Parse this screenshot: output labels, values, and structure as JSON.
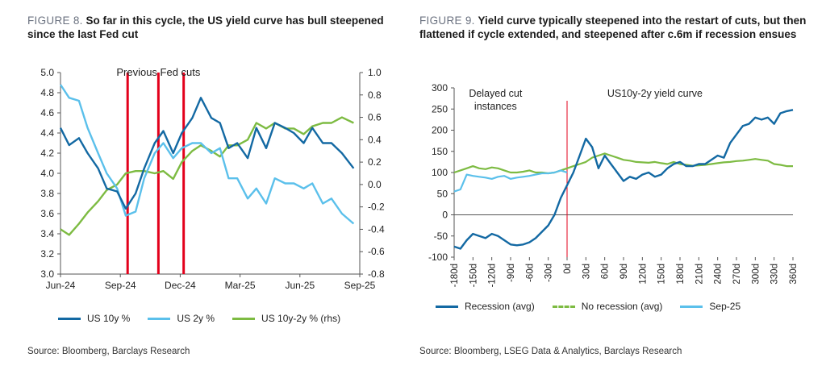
{
  "figure8": {
    "number": "FIGURE 8.",
    "title": "So far in this cycle, the US yield curve has bull steepened since the last Fed cut",
    "source": "Source: Bloomberg, Barclays Research",
    "annotation": "Previous Fed cuts",
    "legend": [
      "US 10y %",
      "US 2y %",
      "US 10y-2y % (rhs)"
    ]
  },
  "figure9": {
    "number": "FIGURE 9.",
    "title": "Yield curve typically steepened into the restart of cuts, but then flattened if cycle extended, and steepened after c.6m if recession ensues",
    "source": "Source: Bloomberg, LSEG Data & Analytics, Barclays Research",
    "annotation_left": "Delayed cut\ninstances",
    "annotation_right": "US10y-2y yield curve",
    "legend": [
      "Recession (avg)",
      "No recession (avg)",
      "Sep-25"
    ]
  },
  "colors": {
    "dark_blue": "#1369a3",
    "light_blue": "#5bc0eb",
    "green": "#7dbb42",
    "red": "#e3001b",
    "axis": "#555555"
  },
  "chart_data": [
    {
      "type": "line",
      "title": "FIGURE 8. So far in this cycle, the US yield curve has bull steepened since the last Fed cut",
      "x_tick_labels": [
        "Jun-24",
        "Sep-24",
        "Dec-24",
        "Mar-25",
        "Jun-25",
        "Sep-25"
      ],
      "x_range": [
        "2024-06-01",
        "2025-09-30"
      ],
      "y_left": {
        "ticks": [
          "3.0",
          "3.2",
          "3.4",
          "3.6",
          "3.8",
          "4.0",
          "4.2",
          "4.4",
          "4.6",
          "4.8",
          "5.0"
        ],
        "lim": [
          3.0,
          5.0
        ]
      },
      "y_right": {
        "ticks": [
          "-0.8",
          "-0.6",
          "-0.4",
          "-0.2",
          "0.0",
          "0.2",
          "0.4",
          "0.6",
          "0.8",
          "1.0"
        ],
        "lim": [
          -0.8,
          1.0
        ]
      },
      "vertical_lines": [
        "2024-09-18",
        "2024-11-07",
        "2024-12-18"
      ],
      "series": [
        {
          "name": "US 10y %",
          "axis": "left",
          "x": [
            "2024-06-01",
            "2024-06-15",
            "2024-07-01",
            "2024-07-15",
            "2024-08-01",
            "2024-08-15",
            "2024-09-01",
            "2024-09-15",
            "2024-10-01",
            "2024-10-15",
            "2024-11-01",
            "2024-11-15",
            "2024-12-01",
            "2024-12-15",
            "2025-01-01",
            "2025-01-15",
            "2025-02-01",
            "2025-02-15",
            "2025-03-01",
            "2025-03-15",
            "2025-04-01",
            "2025-04-15",
            "2025-05-01",
            "2025-05-15",
            "2025-06-01",
            "2025-06-15",
            "2025-07-01",
            "2025-07-15",
            "2025-08-01",
            "2025-08-15",
            "2025-09-01",
            "2025-09-20"
          ],
          "y": [
            4.45,
            4.28,
            4.35,
            4.2,
            4.05,
            3.85,
            3.82,
            3.65,
            3.8,
            4.05,
            4.3,
            4.42,
            4.2,
            4.4,
            4.55,
            4.75,
            4.55,
            4.5,
            4.25,
            4.3,
            4.15,
            4.45,
            4.25,
            4.5,
            4.45,
            4.4,
            4.3,
            4.45,
            4.3,
            4.3,
            4.2,
            4.05
          ]
        },
        {
          "name": "US 2y %",
          "axis": "left",
          "x": [
            "2024-06-01",
            "2024-06-15",
            "2024-07-01",
            "2024-07-15",
            "2024-08-01",
            "2024-08-15",
            "2024-09-01",
            "2024-09-15",
            "2024-10-01",
            "2024-10-15",
            "2024-11-01",
            "2024-11-15",
            "2024-12-01",
            "2024-12-15",
            "2025-01-01",
            "2025-01-15",
            "2025-02-01",
            "2025-02-15",
            "2025-03-01",
            "2025-03-15",
            "2025-04-01",
            "2025-04-15",
            "2025-05-01",
            "2025-05-15",
            "2025-06-01",
            "2025-06-15",
            "2025-07-01",
            "2025-07-15",
            "2025-08-01",
            "2025-08-15",
            "2025-09-01",
            "2025-09-20"
          ],
          "y": [
            4.88,
            4.75,
            4.72,
            4.45,
            4.2,
            4.0,
            3.85,
            3.58,
            3.62,
            3.95,
            4.2,
            4.3,
            4.15,
            4.25,
            4.3,
            4.3,
            4.2,
            4.25,
            3.95,
            3.95,
            3.75,
            3.85,
            3.7,
            3.95,
            3.9,
            3.9,
            3.85,
            3.9,
            3.7,
            3.75,
            3.6,
            3.5
          ]
        },
        {
          "name": "US 10y-2y % (rhs)",
          "axis": "right",
          "x": [
            "2024-06-01",
            "2024-06-15",
            "2024-07-01",
            "2024-07-15",
            "2024-08-01",
            "2024-08-15",
            "2024-09-01",
            "2024-09-15",
            "2024-10-01",
            "2024-10-15",
            "2024-11-01",
            "2024-11-15",
            "2024-12-01",
            "2024-12-15",
            "2025-01-01",
            "2025-01-15",
            "2025-02-01",
            "2025-02-15",
            "2025-03-01",
            "2025-03-15",
            "2025-04-01",
            "2025-04-15",
            "2025-05-01",
            "2025-05-15",
            "2025-06-01",
            "2025-06-15",
            "2025-07-01",
            "2025-07-15",
            "2025-08-01",
            "2025-08-15",
            "2025-09-01",
            "2025-09-20"
          ],
          "y": [
            -0.4,
            -0.45,
            -0.35,
            -0.25,
            -0.15,
            -0.05,
            0.0,
            0.1,
            0.12,
            0.12,
            0.1,
            0.12,
            0.05,
            0.2,
            0.3,
            0.35,
            0.3,
            0.25,
            0.35,
            0.35,
            0.4,
            0.55,
            0.5,
            0.55,
            0.5,
            0.5,
            0.45,
            0.52,
            0.55,
            0.55,
            0.6,
            0.55
          ]
        }
      ]
    },
    {
      "type": "line",
      "title": "FIGURE 9. Yield curve typically steepened into the restart of cuts, but then flattened if cycle extended, and steepened after c.6m if recession ensues",
      "x_tick_labels": [
        "-180d",
        "-150d",
        "-120d",
        "-90d",
        "-60d",
        "-30d",
        "0d",
        "30d",
        "60d",
        "90d",
        "120d",
        "150d",
        "180d",
        "210d",
        "240d",
        "270d",
        "300d",
        "330d",
        "360d"
      ],
      "x_range": [
        -180,
        360
      ],
      "y_ticks": [
        "-100",
        "-50",
        "0",
        "50",
        "100",
        "150",
        "200",
        "250",
        "300"
      ],
      "ylim": [
        -100,
        300
      ],
      "vertical_line_x": 0,
      "series": [
        {
          "name": "Recession (avg)",
          "x": [
            -180,
            -170,
            -160,
            -150,
            -140,
            -130,
            -120,
            -110,
            -100,
            -90,
            -80,
            -70,
            -60,
            -50,
            -40,
            -30,
            -20,
            -10,
            0,
            10,
            20,
            30,
            40,
            50,
            60,
            70,
            80,
            90,
            100,
            110,
            120,
            130,
            140,
            150,
            160,
            170,
            180,
            190,
            200,
            210,
            220,
            230,
            240,
            250,
            260,
            270,
            280,
            290,
            300,
            310,
            320,
            330,
            340,
            350,
            360
          ],
          "y": [
            -75,
            -80,
            -60,
            -45,
            -50,
            -55,
            -45,
            -50,
            -60,
            -70,
            -72,
            -70,
            -65,
            -55,
            -40,
            -25,
            0,
            40,
            70,
            100,
            140,
            180,
            160,
            110,
            140,
            120,
            100,
            80,
            90,
            85,
            95,
            100,
            90,
            95,
            110,
            120,
            125,
            115,
            115,
            120,
            120,
            130,
            140,
            135,
            170,
            190,
            210,
            215,
            230,
            225,
            230,
            215,
            240,
            245,
            248
          ]
        },
        {
          "name": "No recession (avg)",
          "x": [
            -180,
            -170,
            -160,
            -150,
            -140,
            -130,
            -120,
            -110,
            -100,
            -90,
            -80,
            -70,
            -60,
            -50,
            -40,
            -30,
            -20,
            -10,
            0,
            10,
            20,
            30,
            40,
            50,
            60,
            70,
            80,
            90,
            100,
            110,
            120,
            130,
            140,
            150,
            160,
            170,
            180,
            190,
            200,
            210,
            220,
            230,
            240,
            250,
            260,
            270,
            280,
            290,
            300,
            310,
            320,
            330,
            340,
            350,
            360
          ],
          "y": [
            100,
            105,
            110,
            115,
            110,
            108,
            112,
            110,
            105,
            100,
            100,
            102,
            105,
            100,
            100,
            98,
            100,
            105,
            110,
            115,
            120,
            125,
            135,
            140,
            145,
            140,
            135,
            130,
            128,
            125,
            124,
            123,
            125,
            122,
            120,
            125,
            120,
            118,
            116,
            117,
            118,
            120,
            122,
            124,
            125,
            127,
            128,
            130,
            132,
            130,
            128,
            120,
            118,
            115,
            115
          ]
        },
        {
          "name": "Sep-25",
          "x": [
            -180,
            -170,
            -160,
            -150,
            -140,
            -130,
            -120,
            -110,
            -100,
            -90,
            -80,
            -70,
            -60,
            -50,
            -40,
            -30,
            -20,
            -10,
            0
          ],
          "y": [
            55,
            60,
            95,
            92,
            90,
            88,
            85,
            90,
            92,
            85,
            88,
            90,
            92,
            95,
            98,
            98,
            100,
            105,
            100
          ]
        }
      ]
    }
  ]
}
